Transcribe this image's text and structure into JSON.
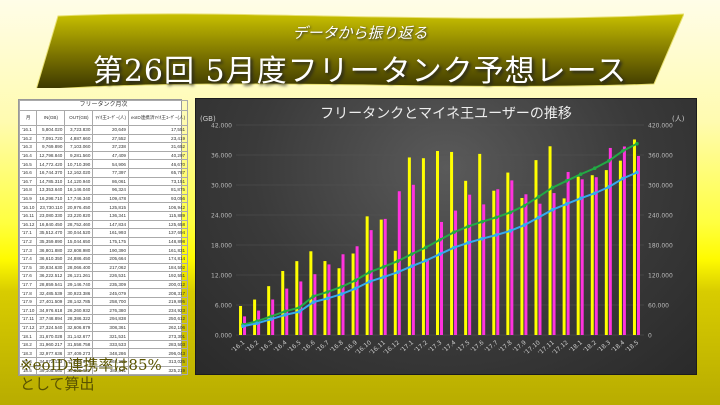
{
  "banner": {
    "subtitle": "データから振り返る",
    "title": "第26回 5月度フリータンク予想レース"
  },
  "table": {
    "caption": "フリータンク月次",
    "headers": [
      "月",
      "IN(GB)",
      "OUT(GB)",
      "ﾏｲﾈ王ﾕｰｻﾞｰ(人)",
      "eoID連携済ﾏｲﾈ王ﾕｰｻﾞｰ(人)"
    ],
    "rows": [
      [
        "'16.1",
        "5,804.020",
        "3,723.830",
        "20,649",
        "17,551"
      ],
      [
        "'16.2",
        "7,091.720",
        "4,887.660",
        "27,552",
        "23,419"
      ],
      [
        "'16.3",
        "9,769.890",
        "7,103.060",
        "37,238",
        "31,652"
      ],
      [
        "'16.4",
        "12,798.840",
        "9,281.560",
        "47,409",
        "40,297"
      ],
      [
        "'16.5",
        "14,772.420",
        "10,710.390",
        "54,906",
        "46,670"
      ],
      [
        "'16.6",
        "16,744.370",
        "12,162.020",
        "77,397",
        "65,787"
      ],
      [
        "'16.7",
        "14,785.310",
        "14,120.940",
        "86,061",
        "73,151"
      ],
      [
        "'16.8",
        "13,353.640",
        "16,146.040",
        "96,324",
        "81,875"
      ],
      [
        "'16.9",
        "16,298.710",
        "17,746.340",
        "109,478",
        "93,056"
      ],
      [
        "'16.10",
        "23,730.110",
        "20,976.450",
        "125,815",
        "106,942"
      ],
      [
        "'16.11",
        "23,080.330",
        "23,220.820",
        "136,341",
        "115,889"
      ],
      [
        "'16.12",
        "16,840.450",
        "28,752.460",
        "147,834",
        "125,658"
      ],
      [
        "'17.1",
        "35,512.470",
        "30,044.520",
        "161,993",
        "137,694"
      ],
      [
        "'17.2",
        "35,359.890",
        "15,044.650",
        "175,175",
        "148,898"
      ],
      [
        "'17.3",
        "36,801.880",
        "22,608.980",
        "190,390",
        "161,831"
      ],
      [
        "'17.4",
        "36,610.350",
        "24,886.450",
        "205,664",
        "174,814"
      ],
      [
        "'17.5",
        "30,834.630",
        "28,066.400",
        "217,062",
        "184,502"
      ],
      [
        "'17.6",
        "36,222.512",
        "26,121.261",
        "226,531",
        "192,551"
      ],
      [
        "'17.7",
        "28,859.541",
        "29,146.740",
        "235,309",
        "200,012"
      ],
      [
        "'17.8",
        "32,485.539",
        "30,923.386",
        "245,079",
        "208,317"
      ],
      [
        "'17.9",
        "27,401.509",
        "28,142.785",
        "258,700",
        "219,895"
      ],
      [
        "'17.10",
        "34,976.618",
        "26,260.932",
        "276,380",
        "234,923"
      ],
      [
        "'17.11",
        "37,748.894",
        "28,386.322",
        "294,838",
        "250,612"
      ],
      [
        "'17.12",
        "27,324.540",
        "32,606.879",
        "308,361",
        "262,106"
      ],
      [
        "'18.1",
        "31,670.028",
        "31,142.677",
        "321,531",
        "273,301"
      ],
      [
        "'18.2",
        "31,960.217",
        "31,558.758",
        "333,533",
        "283,503"
      ],
      [
        "'18.3",
        "32,977.636",
        "37,409.273",
        "348,286",
        "296,043"
      ],
      [
        "'18.4",
        "34,872.123",
        "37,704.676",
        "368,265",
        "313,025"
      ],
      [
        "'18.5",
        "39,105.660",
        "35,809.682",
        "382,611",
        "325,219"
      ]
    ]
  },
  "note": {
    "line1": "※eoID連携率は85%",
    "line2": "として算出"
  },
  "chart": {
    "title": "フリータンクとマイネ王ユーザーの推移",
    "left_unit": "(GB)",
    "right_unit": "(人)"
  },
  "chart_data": {
    "type": "bar",
    "title": "フリータンクとマイネ王ユーザーの推移",
    "xlabel": "",
    "ylabel": "(GB)",
    "y2label": "(人)",
    "ylim": [
      0,
      42000
    ],
    "y2lim": [
      0,
      420000
    ],
    "yticks": [
      "0.000",
      "6.000",
      "12.000",
      "18.000",
      "24.000",
      "30.000",
      "36.000",
      "42.000"
    ],
    "y2ticks": [
      "0",
      "60.000",
      "120.000",
      "180.000",
      "240.000",
      "300.000",
      "360.000",
      "420.000"
    ],
    "grid": true,
    "categories": [
      "'16.1",
      "'16.2",
      "'16.3",
      "'16.4",
      "'16.5",
      "'16.6",
      "'16.7",
      "'16.8",
      "'16.9",
      "'16.10",
      "'16.11",
      "'16.12",
      "'17.1",
      "'17.2",
      "'17.3",
      "'17.4",
      "'17.5",
      "'17.6",
      "'17.7",
      "'17.8",
      "'17.9",
      "'17.10",
      "'17.11",
      "'17.12",
      "'18.1",
      "'18.2",
      "'18.3",
      "'18.4",
      "'18.5"
    ],
    "series": [
      {
        "name": "IN(GB)",
        "type": "bar",
        "axis": "left",
        "color": "#ffff00",
        "values": [
          5804.02,
          7091.72,
          9769.89,
          12798.84,
          14772.42,
          16744.37,
          14785.31,
          13353.64,
          16298.71,
          23730.11,
          23080.33,
          16840.45,
          35512.47,
          35359.89,
          36801.88,
          36610.35,
          30834.63,
          36222.512,
          28859.541,
          32485.539,
          27401.509,
          34976.618,
          37748.894,
          27324.54,
          31670.028,
          31960.217,
          32977.636,
          34872.123,
          39105.66
        ]
      },
      {
        "name": "OUT(GB)",
        "type": "bar",
        "axis": "left",
        "color": "#ff33dd",
        "values": [
          3723.83,
          4887.66,
          7103.06,
          9281.56,
          10710.39,
          12162.02,
          14120.94,
          16146.04,
          17746.34,
          20976.45,
          23220.82,
          28752.46,
          30044.52,
          15044.65,
          22608.98,
          24886.45,
          28066.4,
          26121.261,
          29146.74,
          30923.386,
          28142.785,
          26260.932,
          28386.322,
          32606.879,
          31142.677,
          31558.758,
          37409.273,
          37704.676,
          35809.682
        ]
      },
      {
        "name": "ﾏｲﾈ王ﾕｰｻﾞｰ(人)",
        "type": "line",
        "axis": "right",
        "color": "#22aa44",
        "values": [
          20649,
          27552,
          37238,
          47409,
          54906,
          77397,
          86061,
          96324,
          109478,
          125815,
          136341,
          147834,
          161993,
          175175,
          190390,
          205664,
          217062,
          226531,
          235309,
          245079,
          258700,
          276380,
          294838,
          308361,
          321531,
          333533,
          348286,
          368265,
          382611
        ]
      },
      {
        "name": "eoID連携済ﾏｲﾈ王ﾕｰｻﾞｰ(人)",
        "type": "line",
        "axis": "right",
        "color": "#33aaee",
        "values": [
          17551,
          23419,
          31652,
          40297,
          46670,
          65787,
          73151,
          81875,
          93056,
          106942,
          115889,
          125658,
          137694,
          148898,
          161831,
          174814,
          184502,
          192551,
          200012,
          208317,
          219895,
          234923,
          250612,
          262106,
          273301,
          283503,
          296043,
          313025,
          325219
        ]
      }
    ]
  }
}
